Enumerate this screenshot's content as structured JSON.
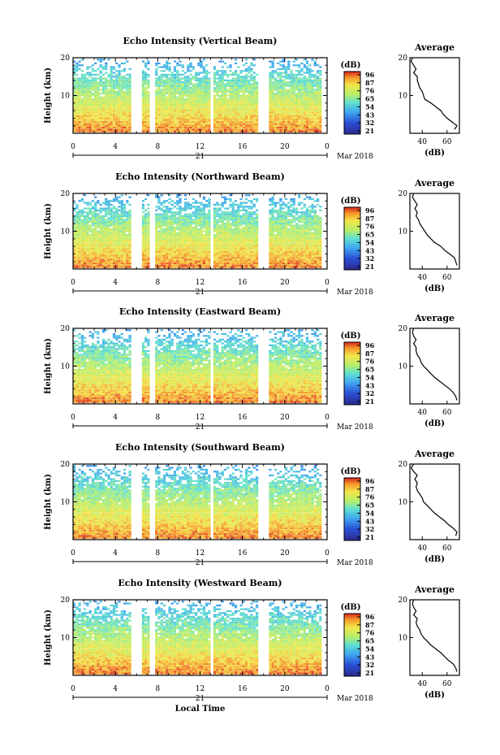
{
  "chart_data": [
    {
      "type": "heatmap",
      "title": "Echo Intensity (Vertical Beam)",
      "ylabel": "Height (km)",
      "xticks": [
        "0",
        "4",
        "8",
        "12",
        "16",
        "20",
        "0"
      ],
      "yticks": [
        "20",
        "10"
      ],
      "date_tick": "21",
      "date_label": "Mar 2018",
      "colorbar": {
        "unit": "(dB)",
        "ticks": [
          "96",
          "87",
          "76",
          "65",
          "54",
          "43",
          "32",
          "21"
        ]
      },
      "average": {
        "title": "Average",
        "xticks": [
          "40",
          "60"
        ],
        "yticks": [
          "20",
          "10"
        ],
        "xlabel": "(dB)",
        "profile": [
          [
            1,
            66
          ],
          [
            2,
            68
          ],
          [
            3,
            64
          ],
          [
            4,
            60
          ],
          [
            5,
            57
          ],
          [
            6,
            55
          ],
          [
            7,
            51
          ],
          [
            8,
            47
          ],
          [
            9,
            42
          ],
          [
            10,
            41
          ],
          [
            11,
            40
          ],
          [
            12,
            38
          ],
          [
            13,
            37
          ],
          [
            14,
            36
          ],
          [
            15,
            36
          ],
          [
            16,
            33
          ],
          [
            17,
            35
          ],
          [
            18,
            33
          ],
          [
            19,
            31
          ],
          [
            20,
            32
          ]
        ]
      },
      "xlim": [
        0,
        24
      ],
      "ylim": [
        0,
        20
      ]
    },
    {
      "type": "heatmap",
      "title": "Echo Intensity (Northward Beam)",
      "ylabel": "Height (km)",
      "xticks": [
        "0",
        "4",
        "8",
        "12",
        "16",
        "20",
        "0"
      ],
      "yticks": [
        "20",
        "10"
      ],
      "date_tick": "21",
      "date_label": "Mar 2018",
      "colorbar": {
        "unit": "(dB)",
        "ticks": [
          "96",
          "87",
          "76",
          "65",
          "54",
          "43",
          "32",
          "21"
        ]
      },
      "average": {
        "title": "Average",
        "xticks": [
          "40",
          "60"
        ],
        "yticks": [
          "20",
          "10"
        ],
        "xlabel": "(dB)",
        "profile": [
          [
            1,
            68
          ],
          [
            2,
            67
          ],
          [
            3,
            66
          ],
          [
            4,
            62
          ],
          [
            5,
            58
          ],
          [
            6,
            55
          ],
          [
            7,
            50
          ],
          [
            8,
            47
          ],
          [
            9,
            44
          ],
          [
            10,
            42
          ],
          [
            11,
            40
          ],
          [
            12,
            38
          ],
          [
            13,
            37
          ],
          [
            14,
            35
          ],
          [
            15,
            36
          ],
          [
            16,
            34
          ],
          [
            17,
            36
          ],
          [
            18,
            34
          ],
          [
            19,
            32
          ],
          [
            20,
            33
          ]
        ]
      },
      "xlim": [
        0,
        24
      ],
      "ylim": [
        0,
        20
      ]
    },
    {
      "type": "heatmap",
      "title": "Echo Intensity (Eastward Beam)",
      "ylabel": "Height (km)",
      "xticks": [
        "0",
        "4",
        "8",
        "12",
        "16",
        "20",
        "0"
      ],
      "yticks": [
        "20",
        "10"
      ],
      "date_tick": "21",
      "date_label": "Mar 2018",
      "colorbar": {
        "unit": "(dB)",
        "ticks": [
          "96",
          "87",
          "76",
          "65",
          "54",
          "43",
          "32",
          "21"
        ]
      },
      "average": {
        "title": "Average",
        "xticks": [
          "40",
          "60"
        ],
        "yticks": [
          "20",
          "10"
        ],
        "xlabel": "(dB)",
        "profile": [
          [
            1,
            68
          ],
          [
            2,
            67
          ],
          [
            3,
            65
          ],
          [
            4,
            62
          ],
          [
            5,
            58
          ],
          [
            6,
            54
          ],
          [
            7,
            50
          ],
          [
            8,
            47
          ],
          [
            9,
            44
          ],
          [
            10,
            41
          ],
          [
            11,
            39
          ],
          [
            12,
            38
          ],
          [
            13,
            36
          ],
          [
            14,
            35
          ],
          [
            15,
            35
          ],
          [
            16,
            33
          ],
          [
            17,
            35
          ],
          [
            18,
            33
          ],
          [
            19,
            32
          ],
          [
            20,
            33
          ]
        ]
      },
      "xlim": [
        0,
        24
      ],
      "ylim": [
        0,
        20
      ]
    },
    {
      "type": "heatmap",
      "title": "Echo Intensity (Southward Beam)",
      "ylabel": "Height (km)",
      "xticks": [
        "0",
        "4",
        "8",
        "12",
        "16",
        "20",
        "0"
      ],
      "yticks": [
        "20",
        "10"
      ],
      "date_tick": "21",
      "date_label": "Mar 2018",
      "colorbar": {
        "unit": "(dB)",
        "ticks": [
          "96",
          "87",
          "76",
          "65",
          "54",
          "43",
          "32",
          "21"
        ]
      },
      "average": {
        "title": "Average",
        "xticks": [
          "40",
          "60"
        ],
        "yticks": [
          "20",
          "10"
        ],
        "xlabel": "(dB)",
        "profile": [
          [
            1,
            67
          ],
          [
            2,
            68
          ],
          [
            3,
            65
          ],
          [
            4,
            61
          ],
          [
            5,
            58
          ],
          [
            6,
            54
          ],
          [
            7,
            50
          ],
          [
            8,
            47
          ],
          [
            9,
            44
          ],
          [
            10,
            41
          ],
          [
            11,
            40
          ],
          [
            12,
            38
          ],
          [
            13,
            36
          ],
          [
            14,
            35
          ],
          [
            15,
            36
          ],
          [
            16,
            34
          ],
          [
            17,
            36
          ],
          [
            18,
            33
          ],
          [
            19,
            31
          ],
          [
            20,
            33
          ]
        ]
      },
      "xlim": [
        0,
        24
      ],
      "ylim": [
        0,
        20
      ]
    },
    {
      "type": "heatmap",
      "title": "Echo Intensity (Westward Beam)",
      "ylabel": "Height (km)",
      "xticks": [
        "0",
        "4",
        "8",
        "12",
        "16",
        "20",
        "0"
      ],
      "yticks": [
        "20",
        "10"
      ],
      "date_tick": "21",
      "date_label": "Mar 2018",
      "xlabel": "Local Time",
      "colorbar": {
        "unit": "(dB)",
        "ticks": [
          "96",
          "87",
          "76",
          "65",
          "54",
          "43",
          "32",
          "21"
        ]
      },
      "average": {
        "title": "Average",
        "xticks": [
          "40",
          "60"
        ],
        "yticks": [
          "20",
          "10"
        ],
        "xlabel": "(dB)",
        "profile": [
          [
            1,
            68
          ],
          [
            2,
            67
          ],
          [
            3,
            65
          ],
          [
            4,
            61
          ],
          [
            5,
            58
          ],
          [
            6,
            55
          ],
          [
            7,
            51
          ],
          [
            8,
            47
          ],
          [
            9,
            44
          ],
          [
            10,
            41
          ],
          [
            11,
            39
          ],
          [
            12,
            38
          ],
          [
            13,
            36
          ],
          [
            14,
            35
          ],
          [
            15,
            36
          ],
          [
            16,
            33
          ],
          [
            17,
            35
          ],
          [
            18,
            33
          ],
          [
            19,
            32
          ],
          [
            20,
            33
          ]
        ]
      },
      "xlim": [
        0,
        24
      ],
      "ylim": [
        0,
        20
      ]
    }
  ]
}
